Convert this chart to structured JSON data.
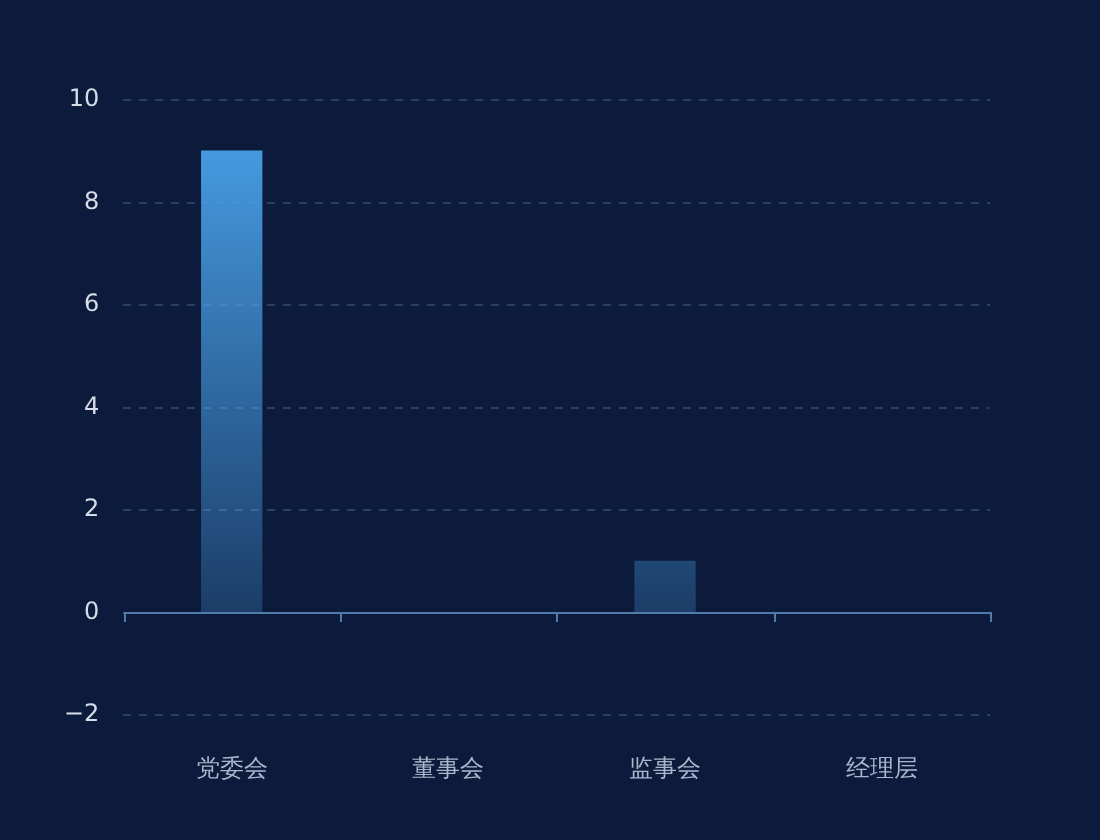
{
  "chart_data": {
    "type": "bar",
    "categories": [
      "党委会",
      "董事会",
      "监事会",
      "经理层"
    ],
    "values": [
      9,
      0,
      1,
      0
    ],
    "color": "#4aa3ec",
    "ylim": [
      -2,
      10
    ],
    "yticks": [
      {
        "value": -2,
        "label": "−2"
      },
      0,
      2,
      4,
      6,
      8,
      10
    ],
    "grid": "y",
    "ref_lines": [
      {
        "axis": "y",
        "value": 0,
        "color": "#4f7ba8"
      }
    ]
  }
}
